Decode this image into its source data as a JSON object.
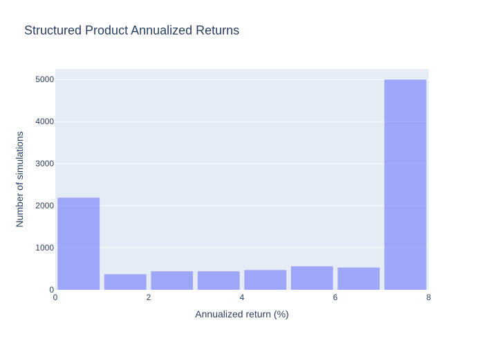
{
  "chart_data": {
    "type": "bar",
    "title": "Structured Product Annualized Returns",
    "xlabel": "Annualized return (%)",
    "ylabel": "Number of simulations",
    "xlim": [
      0,
      8
    ],
    "ylim": [
      0,
      5250
    ],
    "x_ticks": [
      0,
      2,
      4,
      6,
      8
    ],
    "y_ticks": [
      0,
      1000,
      2000,
      3000,
      4000,
      5000
    ],
    "grid": true,
    "bar_color": "#636efa",
    "bar_opacity": 0.55,
    "plot_background": "#e5ecf6",
    "bins": [
      {
        "start": 0,
        "end": 1,
        "value": 2190
      },
      {
        "start": 1,
        "end": 2,
        "value": 370
      },
      {
        "start": 2,
        "end": 3,
        "value": 440
      },
      {
        "start": 3,
        "end": 4,
        "value": 440
      },
      {
        "start": 4,
        "end": 5,
        "value": 470
      },
      {
        "start": 5,
        "end": 6,
        "value": 560
      },
      {
        "start": 6,
        "end": 7,
        "value": 530
      },
      {
        "start": 7,
        "end": 8,
        "value": 5000
      }
    ]
  }
}
